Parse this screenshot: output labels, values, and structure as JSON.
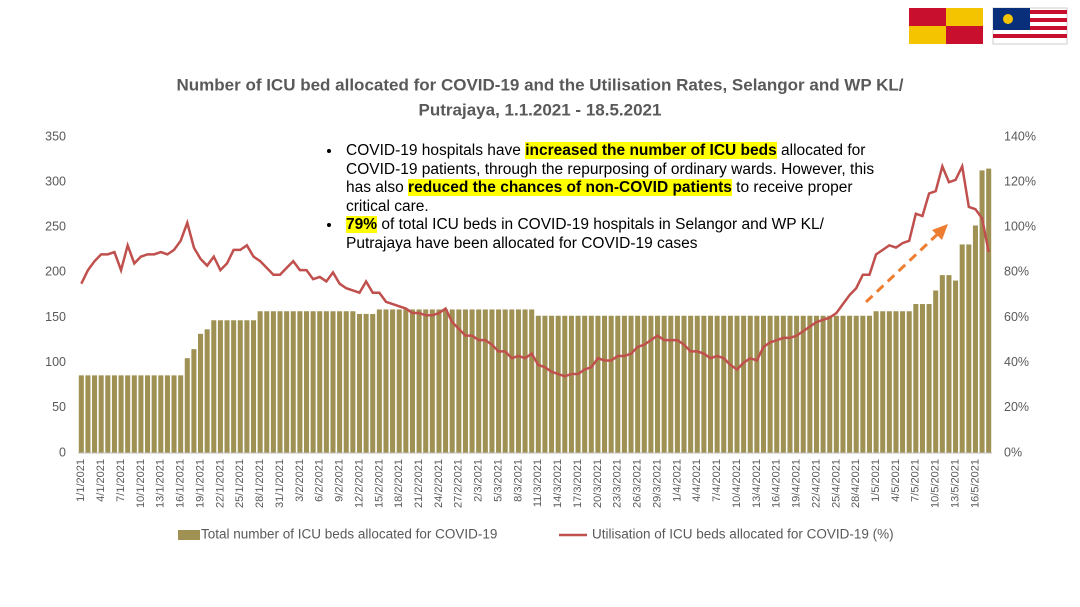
{
  "chart_data": {
    "type": "bar_line",
    "title": [
      "Number of ICU bed allocated for COVID-19 and the Utilisation Rates, Selangor and WP KL/",
      "Putrajaya, 1.1.2021 - 18.5.2021"
    ],
    "categories": [
      "1/1/2021",
      null,
      null,
      "4/1/2021",
      null,
      null,
      "7/1/2021",
      null,
      null,
      "10/1/2021",
      null,
      null,
      "13/1/2021",
      null,
      null,
      "16/1/2021",
      null,
      null,
      "19/1/2021",
      null,
      null,
      "22/1/2021",
      null,
      null,
      "25/1/2021",
      null,
      null,
      "28/1/2021",
      null,
      null,
      "31/1/2021",
      null,
      null,
      "3/2/2021",
      null,
      null,
      "6/2/2021",
      null,
      null,
      "9/2/2021",
      null,
      null,
      "12/2/2021",
      null,
      null,
      "15/2/2021",
      null,
      null,
      "18/2/2021",
      null,
      null,
      "21/2/2021",
      null,
      null,
      "24/2/2021",
      null,
      null,
      "27/2/2021",
      null,
      null,
      "2/3/2021",
      null,
      null,
      "5/3/2021",
      null,
      null,
      "8/3/2021",
      null,
      null,
      "11/3/2021",
      null,
      null,
      "14/3/2021",
      null,
      null,
      "17/3/2021",
      null,
      null,
      "20/3/2021",
      null,
      null,
      "23/3/2021",
      null,
      null,
      "26/3/2021",
      null,
      null,
      "29/3/2021",
      null,
      null,
      "1/4/2021",
      null,
      null,
      "4/4/2021",
      null,
      null,
      "7/4/2021",
      null,
      null,
      "10/4/2021",
      null,
      null,
      "13/4/2021",
      null,
      null,
      "16/4/2021",
      null,
      null,
      "19/4/2021",
      null,
      null,
      "22/4/2021",
      null,
      null,
      "25/4/2021",
      null,
      null,
      "28/4/2021",
      null,
      null,
      "1/5/2021",
      null,
      null,
      "4/5/2021",
      null,
      null,
      "7/5/2021",
      null,
      null,
      "10/5/2021",
      null,
      null,
      "13/5/2021",
      null,
      null,
      "16/5/2021",
      null,
      null
    ],
    "series": [
      {
        "name": "Total number of ICU beds allocated for COVID-19",
        "type": "bar",
        "color": "#9e9153",
        "values": [
          86,
          86,
          86,
          86,
          86,
          86,
          86,
          86,
          86,
          86,
          86,
          86,
          86,
          86,
          86,
          86,
          105,
          115,
          132,
          137,
          147,
          147,
          147,
          147,
          147,
          147,
          147,
          157,
          157,
          157,
          157,
          157,
          157,
          157,
          157,
          157,
          157,
          157,
          157,
          157,
          157,
          157,
          154,
          154,
          154,
          159,
          159,
          159,
          159,
          159,
          159,
          159,
          159,
          159,
          159,
          159,
          159,
          159,
          159,
          159,
          159,
          159,
          159,
          159,
          159,
          159,
          159,
          159,
          159,
          152,
          152,
          152,
          152,
          152,
          152,
          152,
          152,
          152,
          152,
          152,
          152,
          152,
          152,
          152,
          152,
          152,
          152,
          152,
          152,
          152,
          152,
          152,
          152,
          152,
          152,
          152,
          152,
          152,
          152,
          152,
          152,
          152,
          152,
          152,
          152,
          152,
          152,
          152,
          152,
          152,
          152,
          152,
          152,
          152,
          152,
          152,
          152,
          152,
          152,
          152,
          157,
          157,
          157,
          157,
          157,
          157,
          165,
          165,
          165,
          180,
          197,
          197,
          191,
          231,
          231,
          252,
          313,
          315
        ]
      },
      {
        "name": "Utilisation of ICU beds allocated for COVID-19 (%)",
        "type": "line",
        "axis": "y2",
        "color": "#c0504d",
        "values": [
          75,
          81,
          85,
          88,
          88,
          89,
          81,
          92,
          84,
          87,
          88,
          88,
          89,
          88,
          90,
          94,
          102,
          91,
          86,
          83,
          87,
          81,
          84,
          90,
          90,
          92,
          87,
          85,
          82,
          79,
          79,
          82,
          85,
          81,
          81,
          77,
          78,
          76,
          80,
          75,
          73,
          72,
          71,
          76,
          71,
          71,
          67,
          66,
          65,
          64,
          62,
          62,
          61,
          61,
          62,
          64,
          58,
          55,
          52,
          52,
          50,
          50,
          48,
          45,
          45,
          42,
          43,
          42,
          44,
          39,
          38,
          36,
          35,
          34,
          35,
          35,
          37,
          38,
          42,
          41,
          41,
          43,
          43,
          44,
          47,
          48,
          50,
          52,
          50,
          50,
          50,
          48,
          45,
          45,
          44,
          42,
          43,
          42,
          39,
          37,
          40,
          42,
          41,
          47,
          49,
          50,
          51,
          51,
          52,
          54,
          56,
          58,
          59,
          60,
          62,
          66,
          70,
          73,
          79,
          79,
          88,
          90,
          92,
          91,
          93,
          94,
          106,
          105,
          115,
          116,
          127,
          120,
          121,
          127,
          109,
          108,
          104,
          89
        ]
      }
    ],
    "ylim": [
      0,
      350
    ],
    "yticks": [
      0,
      50,
      100,
      150,
      200,
      250,
      300,
      350
    ],
    "y2lim": [
      0,
      140
    ],
    "y2ticks": [
      {
        "value": 0,
        "label": "0%"
      },
      {
        "value": 20,
        "label": "20%"
      },
      {
        "value": 40,
        "label": "40%"
      },
      {
        "value": 60,
        "label": "60%"
      },
      {
        "value": 80,
        "label": "80%"
      },
      {
        "value": 100,
        "label": "100%"
      },
      {
        "value": 120,
        "label": "120%"
      },
      {
        "value": 140,
        "label": "140%"
      }
    ],
    "annotations": [
      [
        {
          "text": "COVID-19 hospitals have "
        },
        {
          "text": "increased the number of ICU beds",
          "highlight": true
        },
        {
          "text": " allocated for COVID-19 patients, through the repurposing of ordinary wards. However, this has also "
        },
        {
          "text": "reduced the chances of non-COVID patients",
          "highlight": true
        },
        {
          "text": " to receive proper critical care."
        }
      ],
      [
        {
          "text": "79%",
          "highlight": true
        },
        {
          "text": " of total ICU beds in COVID-19 hospitals in Selangor and WP KL/ Putrajaya have been allocated for COVID-19 cases"
        }
      ]
    ],
    "legend": "bottom"
  }
}
